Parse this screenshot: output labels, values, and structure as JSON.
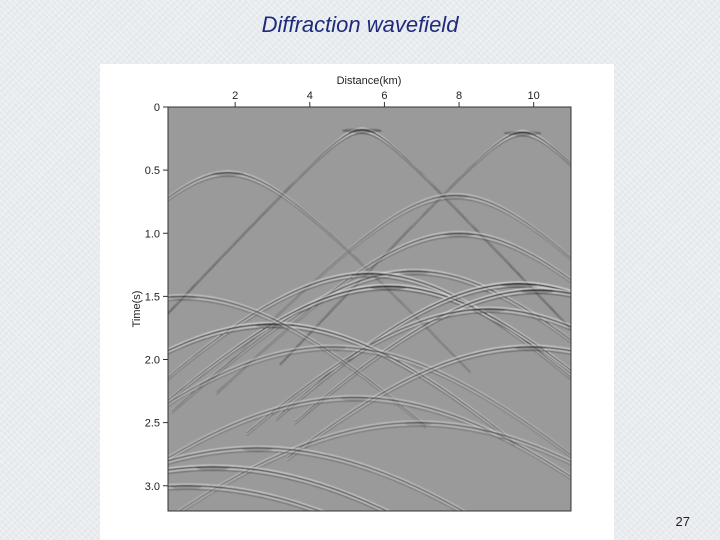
{
  "slide": {
    "title": "Diffraction wavefield",
    "page_number": "27"
  },
  "colors": {
    "title": "#1f2b7a",
    "background": "#e9ecef",
    "seismic_gray": "#9a9a9a"
  },
  "chart_data": {
    "type": "heatmap",
    "title": "",
    "xlabel": "Distance(km)",
    "ylabel": "Time(s)",
    "xlim": [
      0.2,
      11.0
    ],
    "ylim": [
      0,
      3.2
    ],
    "x_axis_position": "top",
    "y_inverted": true,
    "colormap": "gray",
    "grid": false,
    "x_ticks": [
      2,
      4,
      6,
      8,
      10
    ],
    "x_tick_labels": [
      "2",
      "4",
      "6",
      "8",
      "10"
    ],
    "y_ticks": [
      0,
      0.5,
      1.0,
      1.5,
      2.0,
      2.5,
      3.0
    ],
    "y_tick_labels": [
      "0",
      "0.5",
      "1.0",
      "1.5",
      "2.0",
      "2.5",
      "3.0"
    ],
    "diffraction_apexes": [
      {
        "x": 5.4,
        "t": 0.18,
        "strength": 1.0
      },
      {
        "x": 9.7,
        "t": 0.2,
        "strength": 0.9
      },
      {
        "x": 1.8,
        "t": 0.52,
        "strength": 0.6
      },
      {
        "x": 7.9,
        "t": 0.7,
        "strength": 0.45
      },
      {
        "x": 8.0,
        "t": 1.0,
        "strength": 0.6
      },
      {
        "x": 6.8,
        "t": 1.3,
        "strength": 0.6
      },
      {
        "x": 5.6,
        "t": 1.32,
        "strength": 0.75
      },
      {
        "x": 6.1,
        "t": 1.42,
        "strength": 1.0
      },
      {
        "x": 9.6,
        "t": 1.4,
        "strength": 1.0
      },
      {
        "x": 10.1,
        "t": 1.45,
        "strength": 0.9
      },
      {
        "x": 8.8,
        "t": 1.6,
        "strength": 0.7
      },
      {
        "x": 3.0,
        "t": 1.72,
        "strength": 0.85
      },
      {
        "x": 0.6,
        "t": 1.5,
        "strength": 0.5
      },
      {
        "x": 4.6,
        "t": 1.9,
        "strength": 0.4
      },
      {
        "x": 9.9,
        "t": 1.9,
        "strength": 0.65
      },
      {
        "x": 5.2,
        "t": 2.3,
        "strength": 0.45
      },
      {
        "x": 6.9,
        "t": 2.5,
        "strength": 0.4
      },
      {
        "x": 2.6,
        "t": 2.7,
        "strength": 0.55
      },
      {
        "x": 1.4,
        "t": 2.85,
        "strength": 0.7
      },
      {
        "x": 0.7,
        "t": 3.0,
        "strength": 0.6
      }
    ]
  }
}
